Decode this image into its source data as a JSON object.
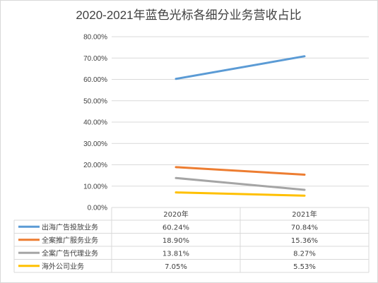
{
  "chart_data": {
    "type": "line",
    "title": "2020-2021年蓝色光标各细分业务营收占比",
    "categories": [
      "2020年",
      "2021年"
    ],
    "y_tick_labels": [
      "0.00%",
      "10.00%",
      "20.00%",
      "30.00%",
      "40.00%",
      "50.00%",
      "60.00%",
      "70.00%",
      "80.00%"
    ],
    "ylim": [
      0,
      80
    ],
    "y_unit": "%",
    "grid": true,
    "legend": "data-table-below",
    "series": [
      {
        "name": "出海广告投放业务",
        "values": [
          60.24,
          70.84
        ],
        "labels": [
          "60.24%",
          "70.84%"
        ],
        "color": "#5b9bd5"
      },
      {
        "name": "全案推广服务业务",
        "values": [
          18.9,
          15.36
        ],
        "labels": [
          "18.90%",
          "15.36%"
        ],
        "color": "#ed7d31"
      },
      {
        "name": "全案广告代理业务",
        "values": [
          13.81,
          8.27
        ],
        "labels": [
          "13.81%",
          "8.27%"
        ],
        "color": "#a5a5a5"
      },
      {
        "name": "海外公司业务",
        "values": [
          7.05,
          5.53
        ],
        "labels": [
          "7.05%",
          "5.53%"
        ],
        "color": "#ffc000"
      }
    ]
  }
}
